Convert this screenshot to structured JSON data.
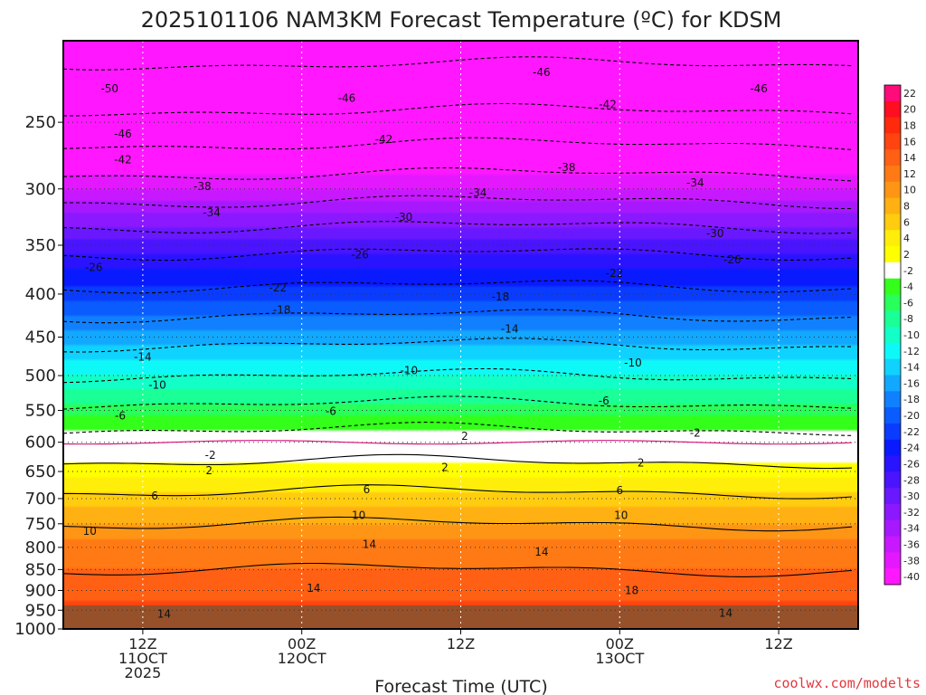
{
  "chart_data": {
    "type": "heatmap",
    "title": "2025101106 NAM3KM Forecast Temperature (ºC) for KDSM",
    "xlabel": "Forecast Time (UTC)",
    "ylabel": "",
    "y_axis_ticks": [
      "250",
      "300",
      "350",
      "400",
      "450",
      "500",
      "550",
      "600",
      "650",
      "700",
      "750",
      "800",
      "850",
      "900",
      "950",
      "1000"
    ],
    "ylim": [
      1000,
      200
    ],
    "y_scale": "log-pressure",
    "x_ticks": [
      {
        "line1": "12Z",
        "line2": "11OCT",
        "line3": "2025"
      },
      {
        "line1": "00Z",
        "line2": "12OCT",
        "line3": ""
      },
      {
        "line1": "12Z",
        "line2": "",
        "line3": ""
      },
      {
        "line1": "00Z",
        "line2": "13OCT",
        "line3": ""
      },
      {
        "line1": "12Z",
        "line2": "",
        "line3": ""
      }
    ],
    "forecast_hours_at_ticks": [
      6,
      18,
      30,
      42,
      54
    ],
    "xlim_hours": [
      0,
      60
    ],
    "grid": "dotted",
    "colorbar": {
      "labels": [
        "22",
        "20",
        "18",
        "16",
        "14",
        "12",
        "10",
        "8",
        "6",
        "4",
        "2",
        "-2",
        "-4",
        "-6",
        "-8",
        "-10",
        "-12",
        "-14",
        "-16",
        "-18",
        "-20",
        "-22",
        "-24",
        "-26",
        "-28",
        "-30",
        "-32",
        "-34",
        "-36",
        "-38",
        "-40"
      ],
      "colors": [
        "#ff0b7a",
        "#ff0d20",
        "#ff2a0c",
        "#ff4410",
        "#ff6014",
        "#ff7a14",
        "#ff9514",
        "#ffb012",
        "#ffcc10",
        "#ffee0a",
        "#ffff00",
        "#ffffff",
        "#33ff1a",
        "#28ff5a",
        "#1aff96",
        "#12ffc8",
        "#0ff8f8",
        "#10d2ff",
        "#12a8ff",
        "#1080ff",
        "#0a5cff",
        "#0a3cff",
        "#0a1aff",
        "#2a14ff",
        "#4a14ff",
        "#6a18ff",
        "#8c18ff",
        "#a818ff",
        "#c818ff",
        "#e418ff",
        "#ff18ff"
      ]
    },
    "temperature_profile": [
      {
        "p": 975,
        "t": 16
      },
      {
        "p": 925,
        "t": 16
      },
      {
        "p": 850,
        "t": 14
      },
      {
        "p": 800,
        "t": 13
      },
      {
        "p": 750,
        "t": 10
      },
      {
        "p": 700,
        "t": 7
      },
      {
        "p": 650,
        "t": 3
      },
      {
        "p": 600,
        "t": 0
      },
      {
        "p": 550,
        "t": -5
      },
      {
        "p": 500,
        "t": -10
      },
      {
        "p": 450,
        "t": -15
      },
      {
        "p": 400,
        "t": -21
      },
      {
        "p": 350,
        "t": -27
      },
      {
        "p": 300,
        "t": -36
      },
      {
        "p": 250,
        "t": -45
      },
      {
        "p": 200,
        "t": -52
      }
    ],
    "contour_labels": [
      {
        "text": "-50",
        "hour": 3.5,
        "p": 228
      },
      {
        "text": "-46",
        "hour": 4.5,
        "p": 258
      },
      {
        "text": "-42",
        "hour": 4.5,
        "p": 277
      },
      {
        "text": "-38",
        "hour": 10.5,
        "p": 298
      },
      {
        "text": "-34",
        "hour": 11.2,
        "p": 320
      },
      {
        "text": "-26",
        "hour": 2.3,
        "p": 372
      },
      {
        "text": "-22",
        "hour": 16.2,
        "p": 393
      },
      {
        "text": "-18",
        "hour": 16.5,
        "p": 418
      },
      {
        "text": "-14",
        "hour": 6.0,
        "p": 475
      },
      {
        "text": "-10",
        "hour": 7.1,
        "p": 513
      },
      {
        "text": "-6",
        "hour": 4.3,
        "p": 558
      },
      {
        "text": "-2",
        "hour": 11.1,
        "p": 622
      },
      {
        "text": "2",
        "hour": 11.0,
        "p": 648
      },
      {
        "text": "6",
        "hour": 6.9,
        "p": 695
      },
      {
        "text": "10",
        "hour": 2.0,
        "p": 765
      },
      {
        "text": "14",
        "hour": 7.6,
        "p": 960
      },
      {
        "text": "-46",
        "hour": 21.4,
        "p": 234
      },
      {
        "text": "-42",
        "hour": 24.2,
        "p": 262
      },
      {
        "text": "-30",
        "hour": 25.7,
        "p": 324
      },
      {
        "text": "-26",
        "hour": 22.4,
        "p": 359
      },
      {
        "text": "6",
        "hour": 22.9,
        "p": 683
      },
      {
        "text": "10",
        "hour": 22.3,
        "p": 733
      },
      {
        "text": "14",
        "hour": 23.1,
        "p": 793
      },
      {
        "text": "14",
        "hour": 18.9,
        "p": 895
      },
      {
        "text": "-10",
        "hour": 26.1,
        "p": 493
      },
      {
        "text": "-6",
        "hour": 20.2,
        "p": 551
      },
      {
        "text": "-34",
        "hour": 31.3,
        "p": 303
      },
      {
        "text": "-18",
        "hour": 33.0,
        "p": 403
      },
      {
        "text": "-14",
        "hour": 33.7,
        "p": 440
      },
      {
        "text": "2",
        "hour": 30.3,
        "p": 590
      },
      {
        "text": "2",
        "hour": 28.8,
        "p": 643
      },
      {
        "text": "-46",
        "hour": 36.1,
        "p": 218
      },
      {
        "text": "-38",
        "hour": 38.0,
        "p": 283
      },
      {
        "text": "14",
        "hour": 36.1,
        "p": 810
      },
      {
        "text": "-42",
        "hour": 41.1,
        "p": 238
      },
      {
        "text": "-22",
        "hour": 41.6,
        "p": 378
      },
      {
        "text": "-10",
        "hour": 43.0,
        "p": 483
      },
      {
        "text": "-6",
        "hour": 40.8,
        "p": 536
      },
      {
        "text": "2",
        "hour": 43.6,
        "p": 635
      },
      {
        "text": "6",
        "hour": 42.0,
        "p": 685
      },
      {
        "text": "10",
        "hour": 42.1,
        "p": 733
      },
      {
        "text": "18",
        "hour": 42.9,
        "p": 900
      },
      {
        "text": "-2",
        "hour": 47.7,
        "p": 585
      },
      {
        "text": "-46",
        "hour": 52.5,
        "p": 228
      },
      {
        "text": "-34",
        "hour": 47.7,
        "p": 295
      },
      {
        "text": "-30",
        "hour": 49.2,
        "p": 339
      },
      {
        "text": "-26",
        "hour": 50.5,
        "p": 364
      },
      {
        "text": "14",
        "hour": 50.0,
        "p": 958
      }
    ],
    "credit": "coolwx.com/modelts"
  }
}
